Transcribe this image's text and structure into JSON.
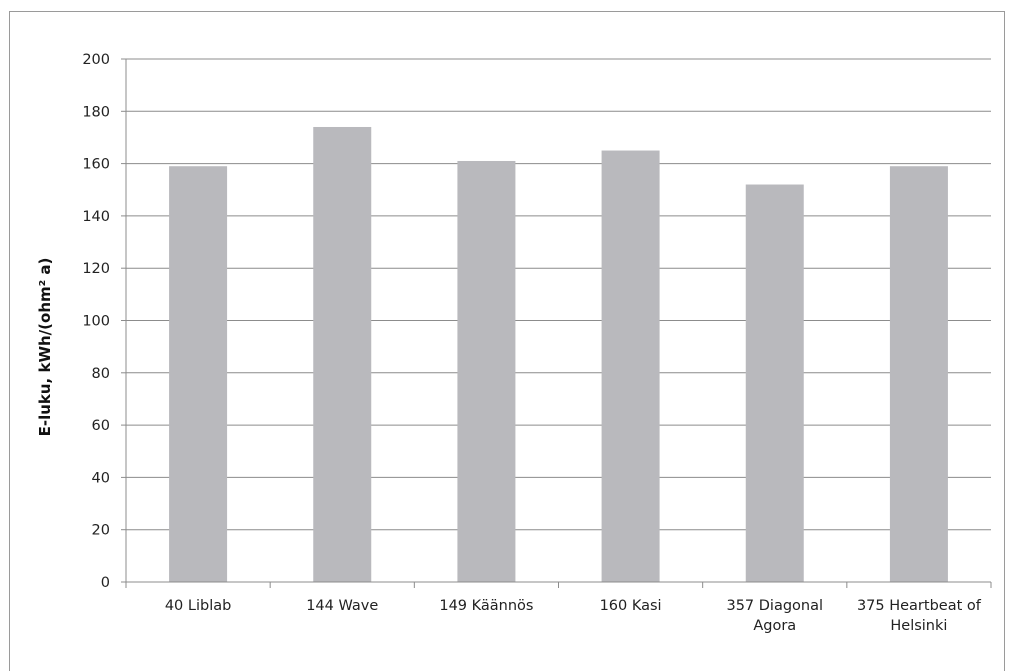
{
  "chart_data": {
    "type": "bar",
    "title": "",
    "xlabel": "",
    "ylabel": "E-luku, kWh/(ohm² a)",
    "ylim": [
      0,
      200
    ],
    "yticks": [
      0,
      20,
      40,
      60,
      80,
      100,
      120,
      140,
      160,
      180,
      200
    ],
    "grid": true,
    "legend": "none",
    "bar_color": "#b9b9bd",
    "categories": [
      [
        "40 Liblab"
      ],
      [
        "144 Wave"
      ],
      [
        "149 Käännös"
      ],
      [
        "160 Kasi"
      ],
      [
        "357 Diagonal",
        "Agora"
      ],
      [
        "375 Heartbeat of",
        "Helsinki"
      ]
    ],
    "values": [
      159,
      174,
      161,
      165,
      152,
      159
    ]
  }
}
